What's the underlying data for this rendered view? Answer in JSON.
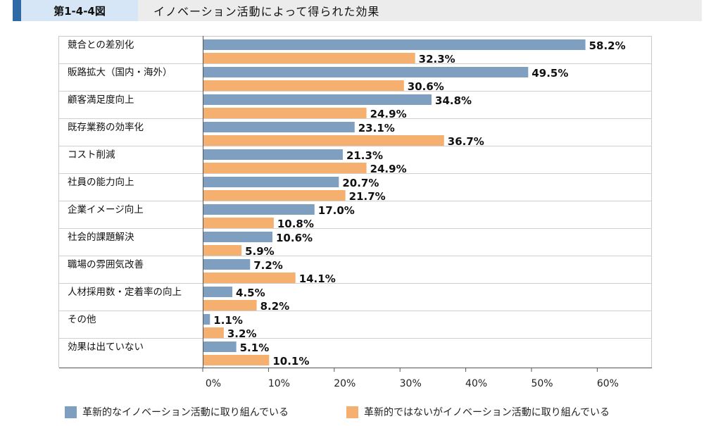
{
  "header": {
    "figure_label": "第1-4-4図",
    "title": "イノベーション活動によって得られた効果"
  },
  "colors": {
    "header_accent": "#2f6aa6",
    "figure_label_bg": "#d7e6f6",
    "series_1": "#7f9fc0",
    "series_2": "#f5b070"
  },
  "chart_data": {
    "type": "bar",
    "orientation": "horizontal",
    "categories": [
      "競合との差別化",
      "販路拡大（国内・海外）",
      "顧客満足度向上",
      "既存業務の効率化",
      "コスト削減",
      "社員の能力向上",
      "企業イメージ向上",
      "社会的課題解決",
      "職場の雰囲気改善",
      "人材採用数・定着率の向上",
      "その他",
      "効果は出ていない"
    ],
    "series": [
      {
        "name": "革新的なイノベーション活動に取り組んでいる",
        "values": [
          58.2,
          49.5,
          34.8,
          23.1,
          21.3,
          20.7,
          17.0,
          10.6,
          7.2,
          4.5,
          1.1,
          5.1
        ],
        "labels": [
          "58.2%",
          "49.5%",
          "34.8%",
          "23.1%",
          "21.3%",
          "20.7%",
          "17.0%",
          "10.6%",
          "7.2%",
          "4.5%",
          "1.1%",
          "5.1%"
        ]
      },
      {
        "name": "革新的ではないがイノベーション活動に取り組んでいる",
        "values": [
          32.3,
          30.6,
          24.9,
          36.7,
          24.9,
          21.7,
          10.8,
          5.9,
          14.1,
          8.2,
          3.2,
          10.1
        ],
        "labels": [
          "32.3%",
          "30.6%",
          "24.9%",
          "36.7%",
          "24.9%",
          "21.7%",
          "10.8%",
          "5.9%",
          "14.1%",
          "8.2%",
          "3.2%",
          "10.1%"
        ]
      }
    ],
    "x_ticks": [
      0,
      10,
      20,
      30,
      40,
      50,
      60
    ],
    "x_tick_labels": [
      "0%",
      "10%",
      "20%",
      "30%",
      "40%",
      "50%",
      "60%"
    ],
    "xlim": [
      0,
      68
    ],
    "grid": "horizontal separators between categories",
    "legend_position": "bottom"
  }
}
